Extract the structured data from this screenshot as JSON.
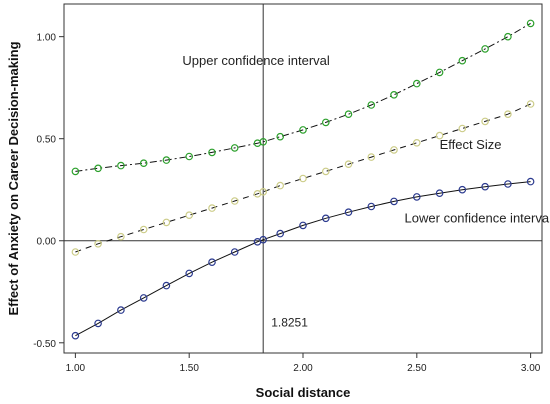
{
  "chart_data": {
    "type": "line",
    "title": "",
    "xlabel": "Social distance",
    "ylabel": "Effect of Anxiety on Career Decision-making",
    "xlim": [
      0.95,
      3.05
    ],
    "ylim": [
      -0.55,
      1.16
    ],
    "x_ticks": [
      1.0,
      1.5,
      2.0,
      2.5,
      3.0
    ],
    "x_tick_labels": [
      "1.00",
      "1.50",
      "2.00",
      "2.50",
      "3.00"
    ],
    "y_ticks": [
      -0.5,
      0.0,
      0.5,
      1.0
    ],
    "y_tick_labels": [
      "-0.50",
      "0.00",
      "0.50",
      "1.00"
    ],
    "grid": false,
    "reference_lines": {
      "horizontal_y": 0.0,
      "vertical_x": 1.8251,
      "vertical_label": "1.8251"
    },
    "x": [
      1.0,
      1.1,
      1.2,
      1.3,
      1.4,
      1.5,
      1.6,
      1.7,
      1.8,
      1.8251,
      1.9,
      2.0,
      2.1,
      2.2,
      2.3,
      2.4,
      2.5,
      2.6,
      2.7,
      2.8,
      2.9,
      3.0
    ],
    "series": [
      {
        "name": "Upper confidence interval",
        "label_text": "Upper confidence interval",
        "color": "#2ca02c",
        "line_style": "dashdot",
        "values": [
          0.34,
          0.355,
          0.368,
          0.38,
          0.395,
          0.413,
          0.433,
          0.455,
          0.478,
          0.485,
          0.51,
          0.543,
          0.58,
          0.62,
          0.665,
          0.715,
          0.77,
          0.825,
          0.882,
          0.94,
          1.0,
          1.065
        ]
      },
      {
        "name": "Effect Size",
        "label_text": "Effect Size",
        "color": "#cccc88",
        "line_style": "dashed",
        "values": [
          -0.055,
          -0.015,
          0.02,
          0.055,
          0.09,
          0.125,
          0.16,
          0.195,
          0.23,
          0.24,
          0.27,
          0.305,
          0.34,
          0.375,
          0.41,
          0.445,
          0.48,
          0.515,
          0.55,
          0.585,
          0.62,
          0.67
        ]
      },
      {
        "name": "Lower confidence interval",
        "label_text": "Lower confidence interval",
        "color": "#2b3a8f",
        "line_style": "solid",
        "values": [
          -0.465,
          -0.405,
          -0.34,
          -0.28,
          -0.22,
          -0.16,
          -0.105,
          -0.055,
          -0.005,
          0.005,
          0.035,
          0.075,
          0.11,
          0.14,
          0.168,
          0.193,
          0.215,
          0.233,
          0.25,
          0.265,
          0.278,
          0.29
        ]
      }
    ]
  }
}
